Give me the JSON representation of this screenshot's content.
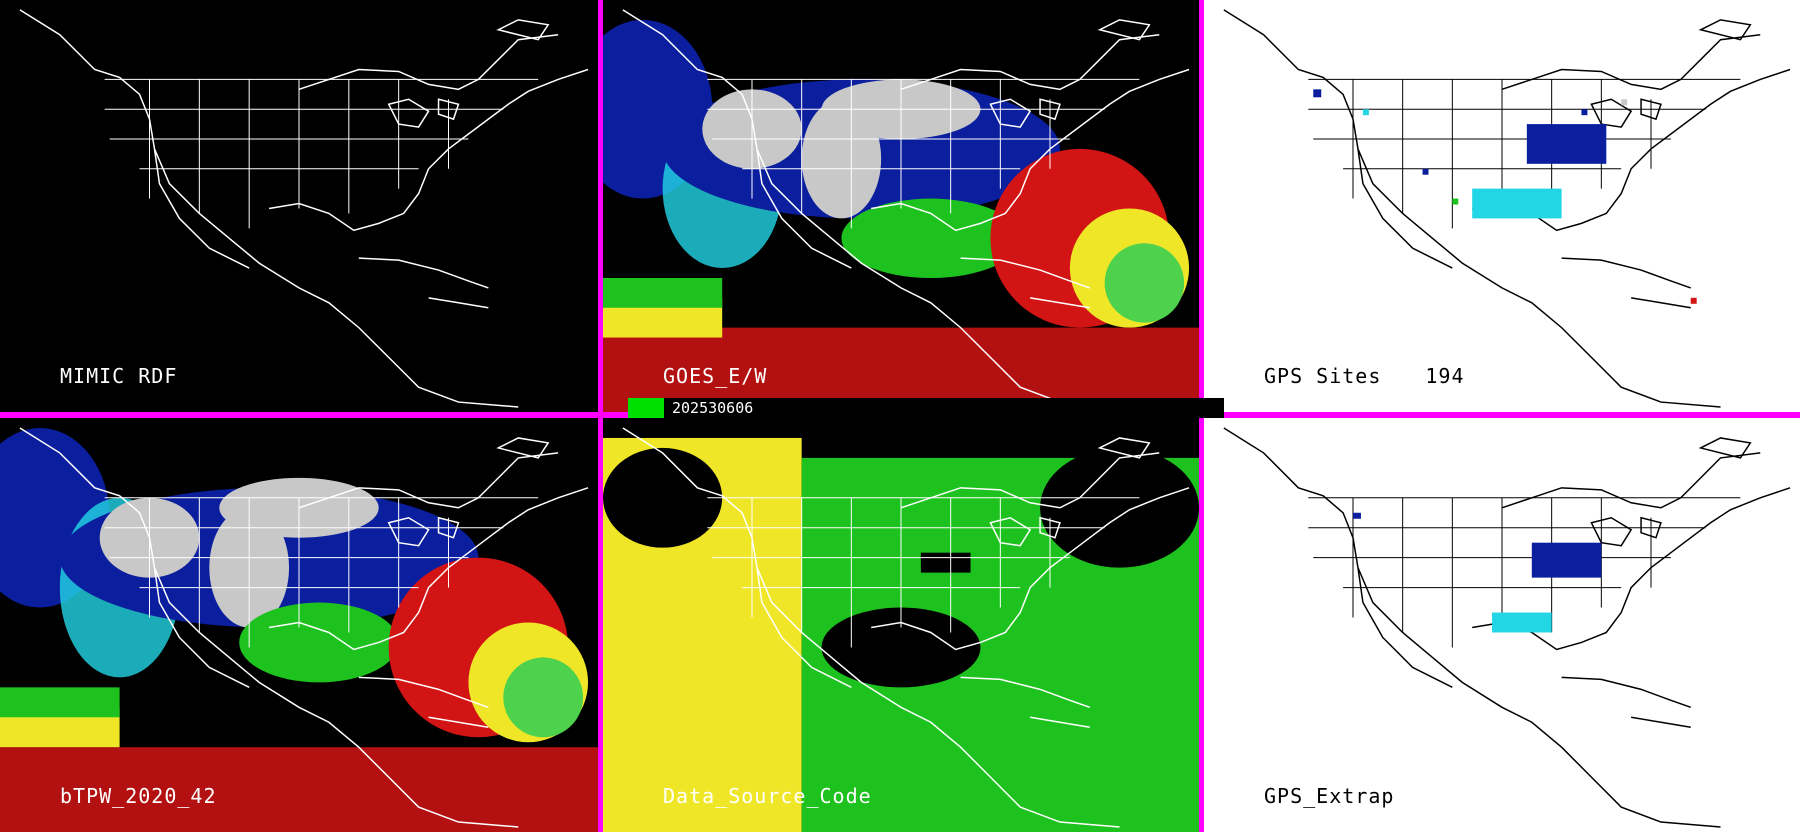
{
  "panels": [
    {
      "label": "MIMIC RDF"
    },
    {
      "label": "GOES_E/W"
    },
    {
      "label": "GPS Sites",
      "count": "194"
    },
    {
      "label": "bTPW_2020_42"
    },
    {
      "label": "Data_Source_Code"
    },
    {
      "label": "GPS_Extrap"
    }
  ],
  "date": "202530606",
  "colors": {
    "divider": "#ff00ff",
    "moist_blue": "#0a1e9e",
    "cyan": "#23d6e6",
    "green": "#1ec21e",
    "yellow": "#f0e628",
    "red": "#d21414",
    "gray": "#c8c8c8"
  },
  "icons": [
    "coastline-map-icon",
    "state-borders-icon"
  ]
}
